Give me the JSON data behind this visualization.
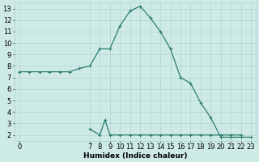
{
  "xlabel": "Humidex (Indice chaleur)",
  "line_color": "#2d7d6e",
  "bg_color": "#ceeae7",
  "grid_color": "#aacfcc",
  "xlim": [
    -0.5,
    23.5
  ],
  "ylim": [
    1.5,
    13.5
  ],
  "xtick_major": [
    0,
    7,
    8,
    9,
    10,
    11,
    12,
    13,
    14,
    15,
    16,
    17,
    18,
    19,
    20,
    21,
    22,
    23
  ],
  "ytick_major": [
    2,
    3,
    4,
    5,
    6,
    7,
    8,
    9,
    10,
    11,
    12,
    13
  ],
  "xlabel_fontsize": 6.5,
  "tick_fontsize": 6,
  "series1_x": [
    0,
    1,
    2,
    3,
    4,
    5,
    6,
    7,
    8,
    9,
    10,
    11,
    12,
    13,
    14,
    15,
    16,
    17,
    18,
    19,
    20,
    21,
    22,
    23
  ],
  "series1_y": [
    7.5,
    7.5,
    7.5,
    7.5,
    7.5,
    7.5,
    7.8,
    8.0,
    9.5,
    9.5,
    11.5,
    12.8,
    13.2,
    12.2,
    11.0,
    9.5,
    7.0,
    6.5,
    4.8,
    3.5,
    1.8,
    1.8,
    1.8,
    1.8
  ],
  "series2_x": [
    7,
    8,
    8.5,
    9,
    10,
    11,
    12,
    13,
    14,
    15,
    16,
    17,
    18,
    19,
    20,
    21,
    22
  ],
  "series2_y": [
    2.5,
    2.0,
    3.3,
    2.0,
    2.0,
    2.0,
    2.0,
    2.0,
    2.0,
    2.0,
    2.0,
    2.0,
    2.0,
    2.0,
    2.0,
    2.0,
    2.0
  ]
}
